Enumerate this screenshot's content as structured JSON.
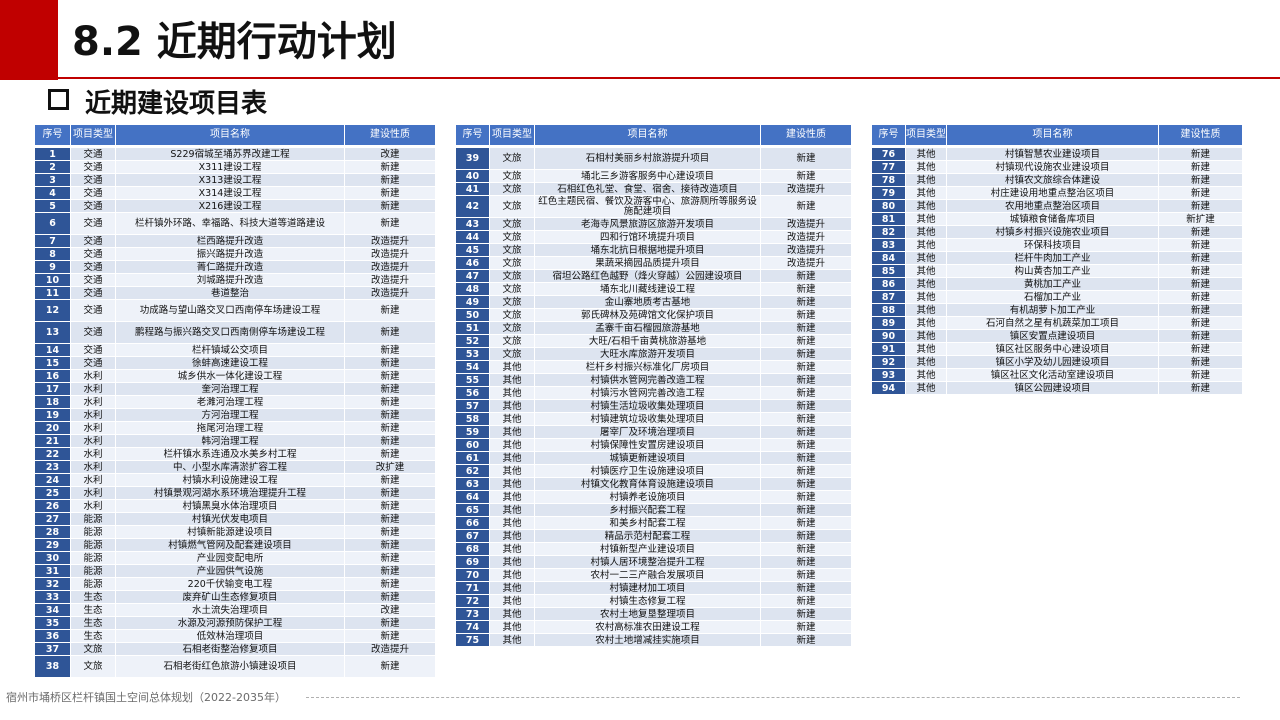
{
  "page": {
    "title": "8.2 近期行动计划",
    "subtitle": "近期建设项目表",
    "footer": "宿州市埇桥区栏杆镇国土空间总体规划（2022-2035年）"
  },
  "colors": {
    "accent": "#c00000",
    "header": "#4472c4",
    "number_cell": "#2f5597",
    "row": "#dde4f0"
  },
  "headers": [
    "序号",
    "项目类型",
    "项目名称",
    "建设性质"
  ],
  "tables": [
    {
      "rows": [
        {
          "no": "1",
          "type": "交通",
          "name": "S229宿城至埇苏界改建工程",
          "nature": "改建"
        },
        {
          "no": "2",
          "type": "交通",
          "name": "X311建设工程",
          "nature": "新建"
        },
        {
          "no": "3",
          "type": "交通",
          "name": "X313建设工程",
          "nature": "新建"
        },
        {
          "no": "4",
          "type": "交通",
          "name": "X314建设工程",
          "nature": "新建"
        },
        {
          "no": "5",
          "type": "交通",
          "name": "X216建设工程",
          "nature": "新建"
        },
        {
          "no": "6",
          "type": "交通",
          "name": "栏杆镇外环路、幸福路、科技大道等道路建设",
          "nature": "新建",
          "tall": true
        },
        {
          "no": "7",
          "type": "交通",
          "name": "栏西路提升改造",
          "nature": "改造提升"
        },
        {
          "no": "8",
          "type": "交通",
          "name": "振兴路提升改造",
          "nature": "改造提升"
        },
        {
          "no": "9",
          "type": "交通",
          "name": "菁仁路提升改造",
          "nature": "改造提升"
        },
        {
          "no": "10",
          "type": "交通",
          "name": "刘城路提升改造",
          "nature": "改造提升"
        },
        {
          "no": "11",
          "type": "交通",
          "name": "巷道整治",
          "nature": "改造提升"
        },
        {
          "no": "12",
          "type": "交通",
          "name": "功成路与望山路交叉口西南停车场建设工程",
          "nature": "新建",
          "tall": true
        },
        {
          "no": "13",
          "type": "交通",
          "name": "鹏程路与振兴路交叉口西南侧停车场建设工程",
          "nature": "新建",
          "tall": true
        },
        {
          "no": "14",
          "type": "交通",
          "name": "栏杆镇域公交项目",
          "nature": "新建"
        },
        {
          "no": "15",
          "type": "交通",
          "name": "徐蚌高速建设工程",
          "nature": "新建"
        },
        {
          "no": "16",
          "type": "水利",
          "name": "城乡供水一体化建设工程",
          "nature": "新建"
        },
        {
          "no": "17",
          "type": "水利",
          "name": "奎河治理工程",
          "nature": "新建"
        },
        {
          "no": "18",
          "type": "水利",
          "name": "老濉河治理工程",
          "nature": "新建"
        },
        {
          "no": "19",
          "type": "水利",
          "name": "方河治理工程",
          "nature": "新建"
        },
        {
          "no": "20",
          "type": "水利",
          "name": "拖尾河治理工程",
          "nature": "新建"
        },
        {
          "no": "21",
          "type": "水利",
          "name": "韩河治理工程",
          "nature": "新建"
        },
        {
          "no": "22",
          "type": "水利",
          "name": "栏杆镇水系连通及水美乡村工程",
          "nature": "新建"
        },
        {
          "no": "23",
          "type": "水利",
          "name": "中、小型水库清淤扩容工程",
          "nature": "改扩建"
        },
        {
          "no": "24",
          "type": "水利",
          "name": "村镇水利设施建设工程",
          "nature": "新建"
        },
        {
          "no": "25",
          "type": "水利",
          "name": "村镇景观河湖水系环境治理提升工程",
          "nature": "新建"
        },
        {
          "no": "26",
          "type": "水利",
          "name": "村镇黑臭水体治理项目",
          "nature": "新建"
        },
        {
          "no": "27",
          "type": "能源",
          "name": "村镇光伏发电项目",
          "nature": "新建"
        },
        {
          "no": "28",
          "type": "能源",
          "name": "村镇新能源建设项目",
          "nature": "新建"
        },
        {
          "no": "29",
          "type": "能源",
          "name": "村镇燃气管网及配套建设项目",
          "nature": "新建"
        },
        {
          "no": "30",
          "type": "能源",
          "name": "产业园变配电所",
          "nature": "新建"
        },
        {
          "no": "31",
          "type": "能源",
          "name": "产业园供气设施",
          "nature": "新建"
        },
        {
          "no": "32",
          "type": "能源",
          "name": "220千伏输变电工程",
          "nature": "新建"
        },
        {
          "no": "33",
          "type": "生态",
          "name": "废弃矿山生态修复项目",
          "nature": "新建"
        },
        {
          "no": "34",
          "type": "生态",
          "name": "水土流失治理项目",
          "nature": "改建"
        },
        {
          "no": "35",
          "type": "生态",
          "name": "水源及河源预防保护工程",
          "nature": "新建"
        },
        {
          "no": "36",
          "type": "生态",
          "name": "低效林治理项目",
          "nature": "新建"
        },
        {
          "no": "37",
          "type": "文旅",
          "name": "石相老街整治修复项目",
          "nature": "改造提升"
        },
        {
          "no": "38",
          "type": "文旅",
          "name": "石相老街红色旅游小镇建设项目",
          "nature": "新建",
          "tall": true
        }
      ]
    },
    {
      "rows": [
        {
          "no": "39",
          "type": "文旅",
          "name": "石相村美丽乡村旅游提升项目",
          "nature": "新建",
          "tall": true
        },
        {
          "no": "40",
          "type": "文旅",
          "name": "埇北三乡游客服务中心建设项目",
          "nature": "新建"
        },
        {
          "no": "41",
          "type": "文旅",
          "name": "石相红色礼堂、食堂、宿舍、接待改造项目",
          "nature": "改造提升"
        },
        {
          "no": "42",
          "type": "文旅",
          "name": "红色主题民宿、餐饮及游客中心、旅游厕所等服务设施配建项目",
          "nature": "新建",
          "tall": true,
          "wrap": true
        },
        {
          "no": "43",
          "type": "文旅",
          "name": "老海寺风景旅游区旅游开发项目",
          "nature": "改造提升"
        },
        {
          "no": "44",
          "type": "文旅",
          "name": "四和行馆环境提升项目",
          "nature": "改造提升"
        },
        {
          "no": "45",
          "type": "文旅",
          "name": "埇东北抗日根据地提升项目",
          "nature": "改造提升"
        },
        {
          "no": "46",
          "type": "文旅",
          "name": "果蔬采摘园品质提升项目",
          "nature": "改造提升"
        },
        {
          "no": "47",
          "type": "文旅",
          "name": "宿坦公路红色越野（烽火穿越）公园建设项目",
          "nature": "新建"
        },
        {
          "no": "48",
          "type": "文旅",
          "name": "埇东北川藏线建设工程",
          "nature": "新建"
        },
        {
          "no": "49",
          "type": "文旅",
          "name": "金山寨地质考古基地",
          "nature": "新建"
        },
        {
          "no": "50",
          "type": "文旅",
          "name": "郭氏碑林及苑碑馆文化保护项目",
          "nature": "新建"
        },
        {
          "no": "51",
          "type": "文旅",
          "name": "孟寨千亩石榴园旅游基地",
          "nature": "新建"
        },
        {
          "no": "52",
          "type": "文旅",
          "name": "大旺/石相千亩黄桃旅游基地",
          "nature": "新建"
        },
        {
          "no": "53",
          "type": "文旅",
          "name": "大旺水库旅游开发项目",
          "nature": "新建"
        },
        {
          "no": "54",
          "type": "其他",
          "name": "栏杆乡村振兴标准化厂房项目",
          "nature": "新建"
        },
        {
          "no": "55",
          "type": "其他",
          "name": "村镇供水管网完善改造工程",
          "nature": "新建"
        },
        {
          "no": "56",
          "type": "其他",
          "name": "村镇污水管网完善改造工程",
          "nature": "新建"
        },
        {
          "no": "57",
          "type": "其他",
          "name": "村镇生活垃圾收集处理项目",
          "nature": "新建"
        },
        {
          "no": "58",
          "type": "其他",
          "name": "村镇建筑垃圾收集处理项目",
          "nature": "新建"
        },
        {
          "no": "59",
          "type": "其他",
          "name": "屠宰厂及环境治理项目",
          "nature": "新建"
        },
        {
          "no": "60",
          "type": "其他",
          "name": "村镇保障性安置房建设项目",
          "nature": "新建"
        },
        {
          "no": "61",
          "type": "其他",
          "name": "城镇更新建设项目",
          "nature": "新建"
        },
        {
          "no": "62",
          "type": "其他",
          "name": "村镇医疗卫生设施建设项目",
          "nature": "新建"
        },
        {
          "no": "63",
          "type": "其他",
          "name": "村镇文化教育体育设施建设项目",
          "nature": "新建"
        },
        {
          "no": "64",
          "type": "其他",
          "name": "村镇养老设施项目",
          "nature": "新建"
        },
        {
          "no": "65",
          "type": "其他",
          "name": "乡村振兴配套工程",
          "nature": "新建"
        },
        {
          "no": "66",
          "type": "其他",
          "name": "和美乡村配套工程",
          "nature": "新建"
        },
        {
          "no": "67",
          "type": "其他",
          "name": "精品示范村配套工程",
          "nature": "新建"
        },
        {
          "no": "68",
          "type": "其他",
          "name": "村镇新型产业建设项目",
          "nature": "新建"
        },
        {
          "no": "69",
          "type": "其他",
          "name": "村镇人居环境整治提升工程",
          "nature": "新建"
        },
        {
          "no": "70",
          "type": "其他",
          "name": "农村一二三产融合发展项目",
          "nature": "新建"
        },
        {
          "no": "71",
          "type": "其他",
          "name": "村镇建材加工项目",
          "nature": "新建"
        },
        {
          "no": "72",
          "type": "其他",
          "name": "村镇生态修复工程",
          "nature": "新建"
        },
        {
          "no": "73",
          "type": "其他",
          "name": "农村土地复垦整理项目",
          "nature": "新建"
        },
        {
          "no": "74",
          "type": "其他",
          "name": "农村高标准农田建设工程",
          "nature": "新建"
        },
        {
          "no": "75",
          "type": "其他",
          "name": "农村土地增减挂实施项目",
          "nature": "新建"
        }
      ]
    },
    {
      "rows": [
        {
          "no": "76",
          "type": "其他",
          "name": "村镇智慧农业建设项目",
          "nature": "新建"
        },
        {
          "no": "77",
          "type": "其他",
          "name": "村镇现代设施农业建设项目",
          "nature": "新建"
        },
        {
          "no": "78",
          "type": "其他",
          "name": "村镇农文旅综合体建设",
          "nature": "新建"
        },
        {
          "no": "79",
          "type": "其他",
          "name": "村庄建设用地重点整治区项目",
          "nature": "新建"
        },
        {
          "no": "80",
          "type": "其他",
          "name": "农用地重点整治区项目",
          "nature": "新建"
        },
        {
          "no": "81",
          "type": "其他",
          "name": "城镇粮食储备库项目",
          "nature": "新扩建"
        },
        {
          "no": "82",
          "type": "其他",
          "name": "村镇乡村振兴设施农业项目",
          "nature": "新建"
        },
        {
          "no": "83",
          "type": "其他",
          "name": "环保科技项目",
          "nature": "新建"
        },
        {
          "no": "84",
          "type": "其他",
          "name": "栏杆牛肉加工产业",
          "nature": "新建"
        },
        {
          "no": "85",
          "type": "其他",
          "name": "构山黄杏加工产业",
          "nature": "新建"
        },
        {
          "no": "86",
          "type": "其他",
          "name": "黄桃加工产业",
          "nature": "新建"
        },
        {
          "no": "87",
          "type": "其他",
          "name": "石榴加工产业",
          "nature": "新建"
        },
        {
          "no": "88",
          "type": "其他",
          "name": "有机胡萝卜加工产业",
          "nature": "新建"
        },
        {
          "no": "89",
          "type": "其他",
          "name": "石河自然之星有机蔬菜加工项目",
          "nature": "新建"
        },
        {
          "no": "90",
          "type": "其他",
          "name": "镇区安置点建设项目",
          "nature": "新建"
        },
        {
          "no": "91",
          "type": "其他",
          "name": "镇区社区服务中心建设项目",
          "nature": "新建"
        },
        {
          "no": "92",
          "type": "其他",
          "name": "镇区小学及幼儿园建设项目",
          "nature": "新建"
        },
        {
          "no": "93",
          "type": "其他",
          "name": "镇区社区文化活动室建设项目",
          "nature": "新建"
        },
        {
          "no": "94",
          "type": "其他",
          "name": "镇区公园建设项目",
          "nature": "新建"
        }
      ]
    }
  ]
}
